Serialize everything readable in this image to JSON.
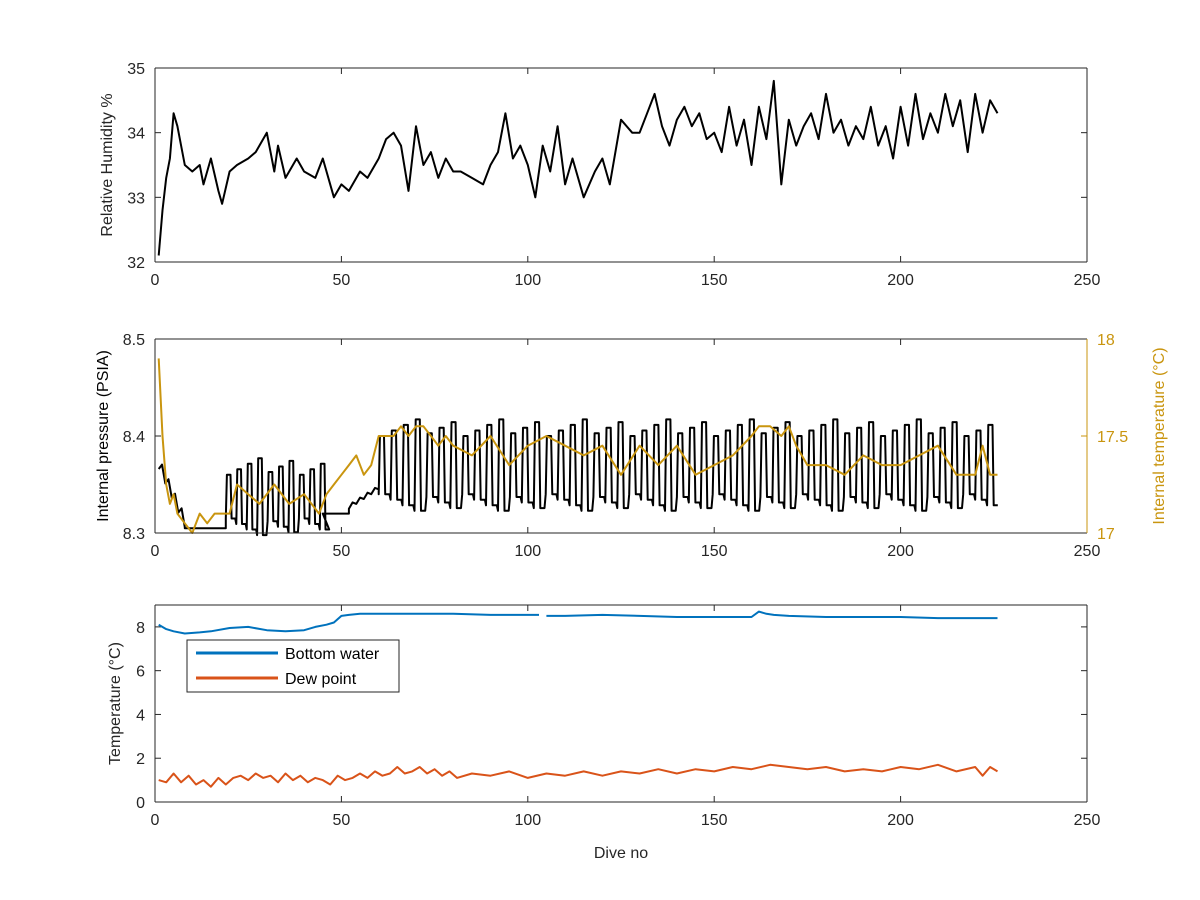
{
  "colors": {
    "axis": "#262626",
    "black_series": "#000000",
    "gold": "#C9950F",
    "blue": "#0072BD",
    "orange": "#D95319"
  },
  "chart_data": [
    {
      "type": "line",
      "xlabel": "",
      "ylabel": "Relative Humidity %",
      "xlim": [
        0,
        250
      ],
      "ylim": [
        32,
        35
      ],
      "xticks": [
        0,
        50,
        100,
        150,
        200,
        250
      ],
      "yticks": [
        32,
        33,
        34,
        35
      ],
      "grid": false,
      "series": [
        {
          "color": "#000000",
          "x": [
            1,
            2,
            3,
            4,
            5,
            6,
            8,
            10,
            12,
            13,
            15,
            17,
            18,
            20,
            22,
            25,
            27,
            30,
            32,
            33,
            35,
            38,
            40,
            43,
            45,
            48,
            50,
            52,
            55,
            57,
            60,
            62,
            64,
            66,
            68,
            70,
            72,
            74,
            76,
            78,
            80,
            82,
            85,
            88,
            90,
            92,
            94,
            96,
            98,
            100,
            102,
            104,
            106,
            108,
            110,
            112,
            115,
            118,
            120,
            122,
            125,
            128,
            130,
            132,
            134,
            136,
            138,
            140,
            142,
            144,
            146,
            148,
            150,
            152,
            154,
            156,
            158,
            160,
            162,
            164,
            166,
            168,
            170,
            172,
            174,
            176,
            178,
            180,
            182,
            184,
            186,
            188,
            190,
            192,
            194,
            196,
            198,
            200,
            202,
            204,
            206,
            208,
            210,
            212,
            214,
            216,
            218,
            220,
            222,
            224,
            226
          ],
          "y": [
            32.1,
            32.8,
            33.3,
            33.6,
            34.3,
            34.1,
            33.5,
            33.4,
            33.5,
            33.2,
            33.6,
            33.1,
            32.9,
            33.4,
            33.5,
            33.6,
            33.7,
            34.0,
            33.4,
            33.8,
            33.3,
            33.6,
            33.4,
            33.3,
            33.6,
            33.0,
            33.2,
            33.1,
            33.4,
            33.3,
            33.6,
            33.9,
            34.0,
            33.8,
            33.1,
            34.1,
            33.5,
            33.7,
            33.3,
            33.6,
            33.4,
            33.4,
            33.3,
            33.2,
            33.5,
            33.7,
            34.3,
            33.6,
            33.8,
            33.5,
            33.0,
            33.8,
            33.4,
            34.1,
            33.2,
            33.6,
            33.0,
            33.4,
            33.6,
            33.2,
            34.2,
            34.0,
            34.0,
            34.3,
            34.6,
            34.1,
            33.8,
            34.2,
            34.4,
            34.1,
            34.3,
            33.9,
            34.0,
            33.7,
            34.4,
            33.8,
            34.2,
            33.5,
            34.4,
            33.9,
            34.8,
            33.2,
            34.2,
            33.8,
            34.1,
            34.3,
            33.9,
            34.6,
            34.0,
            34.2,
            33.8,
            34.1,
            33.9,
            34.4,
            33.8,
            34.1,
            33.6,
            34.4,
            33.8,
            34.6,
            33.9,
            34.3,
            34.0,
            34.6,
            34.1,
            34.5,
            33.7,
            34.6,
            34.0,
            34.5,
            34.3
          ]
        }
      ]
    },
    {
      "type": "line",
      "xlabel": "",
      "ylabel": "Internal pressure (PSIA)",
      "ylabel_right": "Internal temperature (°C)",
      "xlim": [
        0,
        250
      ],
      "ylim": [
        8.3,
        8.5
      ],
      "ylim_right": [
        17,
        18
      ],
      "xticks": [
        0,
        50,
        100,
        150,
        200,
        250
      ],
      "yticks": [
        8.3,
        8.4,
        8.5
      ],
      "yticks_right": [
        17,
        17.5,
        18
      ],
      "grid": false,
      "pressure": {
        "color": "#000000",
        "segments": [
          {
            "x_start": 1,
            "x_end": 8,
            "shape": "decay",
            "y_start": 8.37,
            "y_end": 8.31
          },
          {
            "x_start": 8,
            "x_end": 19,
            "shape": "flat",
            "y": 8.305
          },
          {
            "x_start": 19,
            "x_end": 45,
            "shape": "oscillate",
            "period": 2.8,
            "y_high": 8.37,
            "y_low": 8.315
          },
          {
            "x_start": 45,
            "x_end": 52,
            "shape": "flat",
            "y": 8.32
          },
          {
            "x_start": 52,
            "x_end": 60,
            "shape": "ramp",
            "y_start": 8.325,
            "y_end": 8.345
          },
          {
            "x_start": 60,
            "x_end": 226,
            "shape": "oscillate",
            "period": 3.2,
            "y_high": 8.41,
            "y_low": 8.34
          }
        ]
      },
      "temperature": {
        "color": "#C9950F",
        "x": [
          1,
          2,
          3,
          4,
          5,
          6,
          8,
          10,
          12,
          14,
          16,
          18,
          20,
          22,
          25,
          28,
          32,
          36,
          40,
          44,
          46,
          48,
          50,
          52,
          54,
          56,
          58,
          60,
          62,
          64,
          66,
          68,
          70,
          72,
          74,
          76,
          78,
          80,
          85,
          90,
          95,
          100,
          105,
          110,
          115,
          120,
          125,
          130,
          135,
          140,
          145,
          150,
          155,
          160,
          162,
          165,
          168,
          170,
          172,
          175,
          180,
          185,
          190,
          195,
          200,
          205,
          210,
          215,
          220,
          222,
          224,
          226
        ],
        "y": [
          17.9,
          17.5,
          17.25,
          17.15,
          17.2,
          17.1,
          17.05,
          17.0,
          17.1,
          17.05,
          17.1,
          17.1,
          17.1,
          17.25,
          17.2,
          17.15,
          17.25,
          17.15,
          17.2,
          17.1,
          17.2,
          17.25,
          17.3,
          17.35,
          17.4,
          17.3,
          17.35,
          17.5,
          17.5,
          17.5,
          17.55,
          17.5,
          17.55,
          17.55,
          17.5,
          17.45,
          17.5,
          17.45,
          17.4,
          17.5,
          17.35,
          17.45,
          17.5,
          17.45,
          17.4,
          17.45,
          17.3,
          17.45,
          17.35,
          17.45,
          17.3,
          17.35,
          17.4,
          17.5,
          17.55,
          17.55,
          17.5,
          17.55,
          17.45,
          17.35,
          17.35,
          17.3,
          17.4,
          17.35,
          17.35,
          17.4,
          17.45,
          17.3,
          17.3,
          17.45,
          17.3,
          17.3
        ]
      }
    },
    {
      "type": "line",
      "xlabel": "Dive no",
      "ylabel": "Temperature (°C)",
      "xlim": [
        0,
        250
      ],
      "ylim": [
        0,
        9
      ],
      "xticks": [
        0,
        50,
        100,
        150,
        200,
        250
      ],
      "yticks": [
        0,
        2,
        4,
        6,
        8
      ],
      "grid": false,
      "legend": "top-left",
      "series": [
        {
          "name": "Bottom water",
          "color": "#0072BD",
          "x": [
            1,
            3,
            5,
            8,
            12,
            15,
            20,
            25,
            30,
            35,
            40,
            43,
            46,
            48,
            50,
            52,
            55,
            60,
            70,
            80,
            90,
            100,
            103,
            104,
            105,
            110,
            120,
            130,
            140,
            150,
            155,
            160,
            162,
            164,
            166,
            170,
            180,
            190,
            200,
            210,
            220,
            226
          ],
          "y": [
            8.1,
            7.9,
            7.8,
            7.7,
            7.75,
            7.8,
            7.95,
            8.0,
            7.85,
            7.8,
            7.85,
            8.0,
            8.1,
            8.2,
            8.5,
            8.55,
            8.6,
            8.6,
            8.6,
            8.6,
            8.55,
            8.55,
            8.55,
            null,
            8.5,
            8.5,
            8.55,
            8.5,
            8.45,
            8.45,
            8.45,
            8.45,
            8.7,
            8.6,
            8.55,
            8.5,
            8.45,
            8.45,
            8.45,
            8.4,
            8.4,
            8.4
          ]
        },
        {
          "name": "Dew point",
          "color": "#D95319",
          "x": [
            1,
            3,
            5,
            7,
            9,
            11,
            13,
            15,
            17,
            19,
            21,
            23,
            25,
            27,
            29,
            31,
            33,
            35,
            37,
            39,
            41,
            43,
            45,
            47,
            49,
            51,
            53,
            55,
            57,
            59,
            61,
            63,
            65,
            67,
            69,
            71,
            73,
            75,
            77,
            79,
            81,
            85,
            90,
            95,
            100,
            105,
            110,
            115,
            120,
            125,
            130,
            135,
            140,
            145,
            150,
            155,
            160,
            165,
            170,
            175,
            180,
            185,
            190,
            195,
            200,
            205,
            210,
            215,
            220,
            222,
            224,
            226
          ],
          "y": [
            1.0,
            0.9,
            1.3,
            0.9,
            1.2,
            0.8,
            1.0,
            0.7,
            1.1,
            0.8,
            1.1,
            1.2,
            1.0,
            1.3,
            1.1,
            1.2,
            0.9,
            1.3,
            1.0,
            1.2,
            0.9,
            1.1,
            1.0,
            0.8,
            1.2,
            1.0,
            1.1,
            1.3,
            1.1,
            1.4,
            1.2,
            1.3,
            1.6,
            1.3,
            1.4,
            1.6,
            1.3,
            1.5,
            1.2,
            1.4,
            1.1,
            1.3,
            1.2,
            1.4,
            1.1,
            1.3,
            1.2,
            1.4,
            1.2,
            1.4,
            1.3,
            1.5,
            1.3,
            1.5,
            1.4,
            1.6,
            1.5,
            1.7,
            1.6,
            1.5,
            1.6,
            1.4,
            1.5,
            1.4,
            1.6,
            1.5,
            1.7,
            1.4,
            1.6,
            1.2,
            1.6,
            1.4
          ]
        }
      ]
    }
  ]
}
